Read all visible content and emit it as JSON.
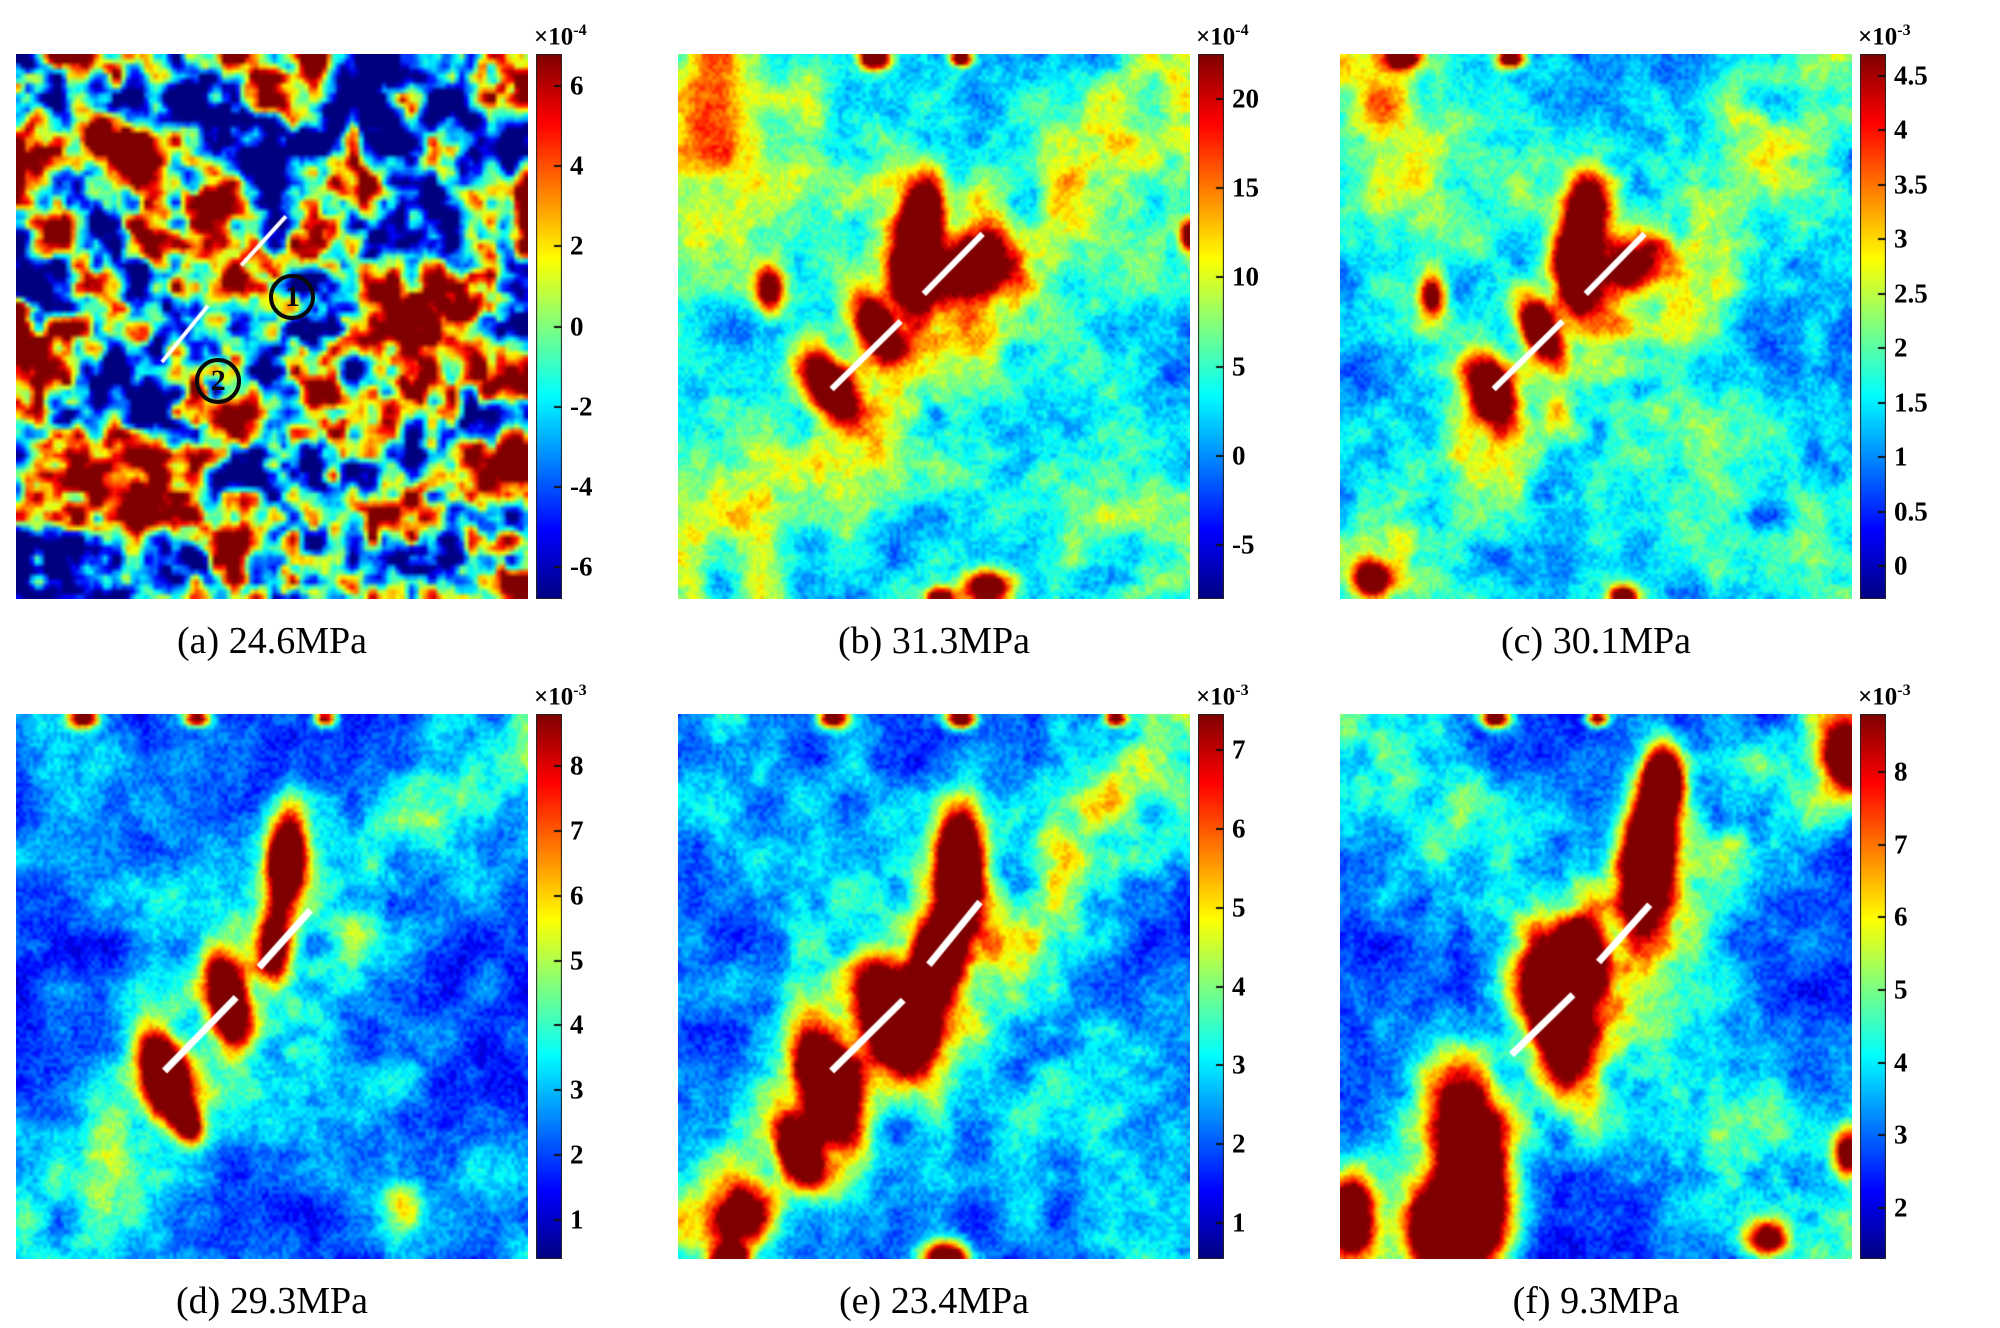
{
  "figure": {
    "panels": [
      {
        "id": "a",
        "caption": "(a) 24.6MPa",
        "colorbar": {
          "exponent_base": "×10",
          "exponent_sup": "-4",
          "ticks": [
            "6",
            "4",
            "2",
            "0",
            "-2",
            "-4",
            "-6"
          ],
          "range": [
            -6.8,
            6.8
          ]
        },
        "annotations": [
          {
            "label": "1"
          },
          {
            "label": "2"
          }
        ]
      },
      {
        "id": "b",
        "caption": "(b) 31.3MPa",
        "colorbar": {
          "exponent_base": "×10",
          "exponent_sup": "-4",
          "ticks": [
            "20",
            "15",
            "10",
            "5",
            "0",
            "-5"
          ],
          "range": [
            -8,
            22.5
          ]
        },
        "annotations": []
      },
      {
        "id": "c",
        "caption": "(c) 30.1MPa",
        "colorbar": {
          "exponent_base": "×10",
          "exponent_sup": "-3",
          "ticks": [
            "4.5",
            "4",
            "3.5",
            "3",
            "2.5",
            "2",
            "1.5",
            "1",
            "0.5",
            "0"
          ],
          "range": [
            -0.3,
            4.7
          ]
        },
        "annotations": []
      },
      {
        "id": "d",
        "caption": "(d) 29.3MPa",
        "colorbar": {
          "exponent_base": "×10",
          "exponent_sup": "-3",
          "ticks": [
            "8",
            "7",
            "6",
            "5",
            "4",
            "3",
            "2",
            "1"
          ],
          "range": [
            0.4,
            8.8
          ]
        },
        "annotations": []
      },
      {
        "id": "e",
        "caption": "(e) 23.4MPa",
        "colorbar": {
          "exponent_base": "×10",
          "exponent_sup": "-3",
          "ticks": [
            "7",
            "6",
            "5",
            "4",
            "3",
            "2",
            "1"
          ],
          "range": [
            0.55,
            7.45
          ]
        },
        "annotations": []
      },
      {
        "id": "f",
        "caption": "(f) 9.3MPa",
        "colorbar": {
          "exponent_base": "×10",
          "exponent_sup": "-3",
          "ticks": [
            "8",
            "7",
            "6",
            "5",
            "4",
            "3",
            "2"
          ],
          "range": [
            1.3,
            8.8
          ]
        },
        "annotations": []
      }
    ]
  },
  "chart_data": [
    {
      "panel": "a",
      "type": "heatmap",
      "caption": "(a) 24.6MPa",
      "applied_stress_MPa": 24.6,
      "colormap": "jet",
      "colorbar": {
        "scale_exponent": -4,
        "ticks": [
          6,
          4,
          2,
          0,
          -2,
          -4,
          -6
        ],
        "estimated_range": [
          -6.8,
          6.8
        ]
      },
      "annotations": [
        "circled marker 1",
        "circled marker 2",
        "two short white diagonal line segments"
      ],
      "pattern": "dense random speckle field, strain not yet localized"
    },
    {
      "panel": "b",
      "type": "heatmap",
      "caption": "(b) 31.3MPa",
      "applied_stress_MPa": 31.3,
      "colormap": "jet",
      "colorbar": {
        "scale_exponent": -4,
        "ticks": [
          20,
          15,
          10,
          5,
          0,
          -5
        ],
        "estimated_range": [
          -8,
          22.5
        ]
      },
      "annotations": [
        "two white diagonal line segments"
      ],
      "pattern": "strain beginning to localize as red spots along an inclined band"
    },
    {
      "panel": "c",
      "type": "heatmap",
      "caption": "(c) 30.1MPa",
      "applied_stress_MPa": 30.1,
      "colormap": "jet",
      "colorbar": {
        "scale_exponent": -3,
        "ticks": [
          4.5,
          4,
          3.5,
          3,
          2.5,
          2,
          1.5,
          1,
          0.5,
          0
        ],
        "estimated_range": [
          -0.3,
          4.7
        ]
      },
      "annotations": [
        "two white diagonal line segments"
      ],
      "pattern": "localized high-strain spots along inclined band on cyan background"
    },
    {
      "panel": "d",
      "type": "heatmap",
      "caption": "(d) 29.3MPa",
      "applied_stress_MPa": 29.3,
      "colormap": "jet",
      "colorbar": {
        "scale_exponent": -3,
        "ticks": [
          8,
          7,
          6,
          5,
          4,
          3,
          2,
          1
        ],
        "estimated_range": [
          0.4,
          8.8
        ]
      },
      "annotations": [
        "two white diagonal line segments"
      ],
      "pattern": "well developed high-strain spots along diagonal band, dark blue background"
    },
    {
      "panel": "e",
      "type": "heatmap",
      "caption": "(e) 23.4MPa",
      "applied_stress_MPa": 23.4,
      "colormap": "jet",
      "colorbar": {
        "scale_exponent": -3,
        "ticks": [
          7,
          6,
          5,
          4,
          3,
          2,
          1
        ],
        "estimated_range": [
          0.55,
          7.45
        ]
      },
      "annotations": [
        "two white diagonal line segments"
      ],
      "pattern": "large saturated red strain concentrations along shear band"
    },
    {
      "panel": "f",
      "type": "heatmap",
      "caption": "(f) 9.3MPa",
      "applied_stress_MPa": 9.3,
      "colormap": "jet",
      "colorbar": {
        "scale_exponent": -3,
        "ticks": [
          8,
          7,
          6,
          5,
          4,
          3,
          2
        ],
        "estimated_range": [
          1.3,
          8.8
        ]
      },
      "annotations": [
        "two white diagonal line segments"
      ],
      "pattern": "fully developed shear band with merged large high-strain zones"
    }
  ]
}
